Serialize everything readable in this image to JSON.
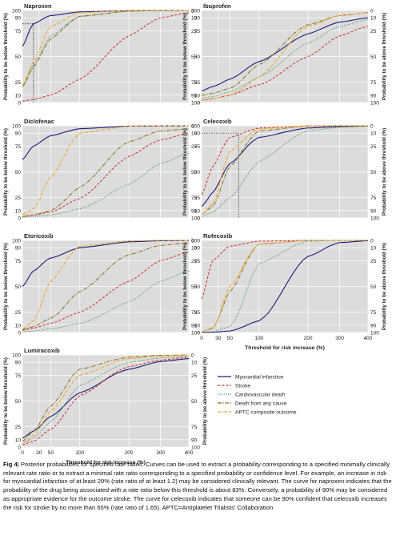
{
  "colors": {
    "panel_bg": "#dcdcdc",
    "myocardial": "#1c1c7c",
    "stroke": "#d12a2a",
    "cardio": "#4f9a6e",
    "death": "#8a6a0e",
    "aptc": "#eeaa3a"
  },
  "axis_text": {
    "left_ylabel": "Probability to be below threshold (%)",
    "right_ylabel": "Probability to be above threshold (%)",
    "xlabel": "Threshold for risk increase (%)",
    "left_ticks": [
      "100",
      "90",
      "75",
      "50",
      "25",
      "10",
      "0"
    ],
    "right_ticks": [
      "0",
      "10",
      "25",
      "50",
      "75",
      "90",
      "100"
    ],
    "x_ticks": [
      "0",
      "30",
      "50",
      "100",
      "200",
      "300",
      "400"
    ]
  },
  "legend": {
    "items": [
      "Myocardial infarction",
      "Stroke",
      "Cardiovascular death",
      "Death from any cause",
      "APTC composite outcome"
    ]
  },
  "caption": {
    "label": "Fig 4",
    "text": "| Posterior probabilities for specified rate ratios. Curves can be used to extract a probability corresponding to a specified minimally clinically relevant rate ratio or to extract a minimal rate ratio corresponding to a specified probability or confidence level. For example, an increase in risk for myocardial infarction of at least 20% (rate ratio of at least 1.2) may be considered clinically relevant. The curve for naproxen indicates that the probability of the drug being associated with a rate ratio below this threshold is about 83%. Conversely, a probability of 90% may be considered as appropriate evidence for the outcome stroke. The curve for celecoxib indicates that someone can be 90% confident that celecoxib increases the risk for stroke by no more than 65% (rate ratio of 1.65). APTC=Antiplatelet Trialists’ Collaboration"
  },
  "chart_data": [
    {
      "type": "line",
      "title": "Naproxen",
      "x": [
        0,
        20,
        50,
        100,
        200,
        300,
        400
      ],
      "series": [
        {
          "name": "Myocardial infarction",
          "values": [
            60,
            83,
            93,
            98,
            99.7,
            99.9,
            100
          ]
        },
        {
          "name": "Stroke",
          "values": [
            2,
            4,
            10,
            28,
            70,
            90,
            97
          ]
        },
        {
          "name": "Cardiovascular death",
          "values": [
            20,
            42,
            70,
            92,
            99,
            99.8,
            100
          ]
        },
        {
          "name": "Death from any cause",
          "values": [
            20,
            40,
            67,
            92,
            99,
            99.9,
            100
          ]
        },
        {
          "name": "APTC composite outcome",
          "values": [
            22,
            45,
            80,
            97,
            99.8,
            100,
            100
          ]
        }
      ]
    },
    {
      "type": "line",
      "title": "Ibuprofen",
      "x": [
        0,
        20,
        50,
        100,
        200,
        300,
        400
      ],
      "series": [
        {
          "name": "Myocardial infarction",
          "values": [
            15,
            20,
            28,
            45,
            72,
            85,
            90
          ]
        },
        {
          "name": "Stroke",
          "values": [
            3,
            5,
            10,
            22,
            50,
            70,
            80
          ]
        },
        {
          "name": "Cardiovascular death",
          "values": [
            6,
            8,
            14,
            30,
            63,
            80,
            88
          ]
        },
        {
          "name": "Death from any cause",
          "values": [
            10,
            12,
            18,
            42,
            82,
            93,
            97
          ]
        },
        {
          "name": "APTC composite outcome",
          "values": [
            3,
            5,
            10,
            30,
            80,
            93,
            97
          ]
        }
      ]
    },
    {
      "type": "line",
      "title": "Diclofenac",
      "x": [
        0,
        20,
        50,
        100,
        200,
        300,
        400
      ],
      "series": [
        {
          "name": "Myocardial infarction",
          "values": [
            62,
            75,
            87,
            96,
            99.5,
            99.9,
            100
          ]
        },
        {
          "name": "Stroke",
          "values": [
            2,
            4,
            8,
            24,
            65,
            82,
            90
          ]
        },
        {
          "name": "Cardiovascular death",
          "values": [
            1,
            2,
            4,
            12,
            38,
            58,
            68
          ]
        },
        {
          "name": "Death from any cause",
          "values": [
            2,
            4,
            10,
            35,
            80,
            93,
            96
          ]
        },
        {
          "name": "APTC composite outcome",
          "values": [
            5,
            12,
            45,
            90,
            99.5,
            100,
            100
          ]
        }
      ]
    },
    {
      "type": "line",
      "title": "Celecoxib",
      "x": [
        0,
        20,
        50,
        100,
        200,
        300,
        400
      ],
      "series": [
        {
          "name": "Myocardial infarction",
          "values": [
            15,
            30,
            58,
            85,
            97,
            99,
            99.6
          ]
        },
        {
          "name": "Stroke",
          "values": [
            28,
            55,
            85,
            97,
            99.8,
            100,
            100
          ]
        },
        {
          "name": "Cardiovascular death",
          "values": [
            2,
            8,
            25,
            60,
            93,
            98,
            99.5
          ]
        },
        {
          "name": "Death from any cause",
          "values": [
            5,
            15,
            55,
            93,
            99.8,
            100,
            100
          ]
        },
        {
          "name": "APTC composite outcome",
          "values": [
            5,
            18,
            70,
            96,
            99.8,
            100,
            100
          ]
        }
      ]
    },
    {
      "type": "line",
      "title": "Etoricoxib",
      "x": [
        0,
        20,
        50,
        100,
        200,
        300,
        400
      ],
      "series": [
        {
          "name": "Myocardial infarction",
          "values": [
            50,
            65,
            78,
            90,
            98,
            99.5,
            99.9
          ]
        },
        {
          "name": "Stroke",
          "values": [
            3,
            6,
            12,
            25,
            55,
            75,
            85
          ]
        },
        {
          "name": "Cardiovascular death",
          "values": [
            1,
            2,
            5,
            12,
            35,
            55,
            65
          ]
        },
        {
          "name": "Death from any cause",
          "values": [
            4,
            8,
            18,
            45,
            82,
            93,
            97
          ]
        },
        {
          "name": "APTC composite outcome",
          "values": [
            5,
            15,
            55,
            92,
            99.5,
            100,
            100
          ]
        }
      ]
    },
    {
      "type": "line",
      "title": "Rofecoxib",
      "x": [
        0,
        20,
        50,
        100,
        200,
        300,
        400
      ],
      "series": [
        {
          "name": "Myocardial infarction",
          "values": [
            0,
            0.3,
            2,
            15,
            80,
            97,
            99.5
          ]
        },
        {
          "name": "Stroke",
          "values": [
            38,
            75,
            92,
            99,
            100,
            100,
            100
          ]
        },
        {
          "name": "Cardiovascular death",
          "values": [
            0,
            1,
            8,
            72,
            99,
            100,
            100
          ]
        },
        {
          "name": "Death from any cause",
          "values": [
            1,
            6,
            45,
            95,
            100,
            100,
            100
          ]
        },
        {
          "name": "APTC composite outcome",
          "values": [
            1,
            5,
            50,
            95,
            100,
            100,
            100
          ]
        }
      ]
    },
    {
      "type": "line",
      "title": "Lumiracoxib",
      "x": [
        0,
        20,
        50,
        100,
        200,
        300,
        400
      ],
      "series": [
        {
          "name": "Myocardial infarction",
          "values": [
            12,
            20,
            35,
            58,
            82,
            91,
            95
          ]
        },
        {
          "name": "Stroke",
          "values": [
            3,
            8,
            22,
            55,
            85,
            93,
            97
          ]
        },
        {
          "name": "Cardiovascular death",
          "values": [
            5,
            12,
            30,
            65,
            90,
            96,
            98
          ]
        },
        {
          "name": "Death from any cause",
          "values": [
            8,
            20,
            45,
            82,
            97,
            99.5,
            100
          ]
        },
        {
          "name": "APTC composite outcome",
          "values": [
            5,
            15,
            40,
            75,
            95,
            98.5,
            99.5
          ]
        }
      ]
    }
  ],
  "guides": [
    {
      "panel": "Naproxen",
      "x": 20,
      "y": 83
    },
    {
      "panel": "Celecoxib",
      "x": 65,
      "y": 90
    }
  ]
}
